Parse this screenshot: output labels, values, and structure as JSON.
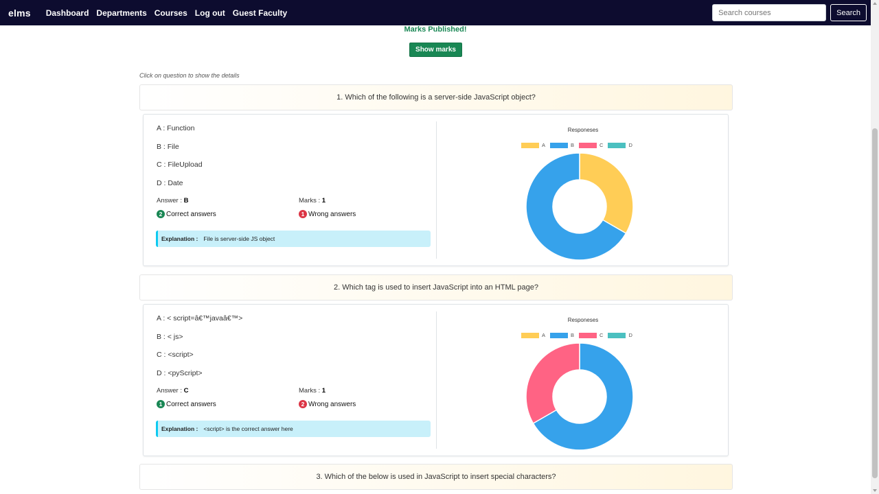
{
  "navbar": {
    "brand": "elms",
    "links": [
      "Dashboard",
      "Departments",
      "Courses",
      "Log out",
      "Guest Faculty"
    ],
    "search_placeholder": "Search courses",
    "search_button": "Search"
  },
  "status": {
    "published_text": "Marks Published!",
    "show_marks_label": "Show marks",
    "hint": "Click on question to show the details"
  },
  "labels": {
    "answer": "Answer : ",
    "marks": "Marks : ",
    "correct": "Correct answers",
    "wrong": "Wrong answers",
    "explanation": "Explanation :",
    "chart_title": "Responeses"
  },
  "colors": {
    "A": "#ffcd56",
    "B": "#36a2eb",
    "C": "#ff6384",
    "D": "#4bc0c0",
    "navbar": "#0d0c2f",
    "success": "#198754",
    "danger": "#dc3545"
  },
  "questions": [
    {
      "title": "1. Which of the following is a server-side JavaScript object?",
      "options": [
        "A : Function",
        "B : File",
        "C : FileUpload",
        "D : Date"
      ],
      "answer": "B",
      "marks": "1",
      "correct_count": "2",
      "wrong_count": "1",
      "explanation": "File is server-side JS object"
    },
    {
      "title": "2. Which tag is used to insert JavaScript into an HTML page?",
      "options": [
        "A : < script=â€™javaâ€™>",
        "B : < js>",
        "C : <script>",
        "D : <pyScript>"
      ],
      "answer": "C",
      "marks": "1",
      "correct_count": "1",
      "wrong_count": "2",
      "explanation": "<script> is the correct answer here"
    },
    {
      "title": "3. Which of the below is used in JavaScript to insert special characters?"
    }
  ],
  "chart_data": [
    {
      "type": "pie",
      "title": "Responeses",
      "categories": [
        "A",
        "B",
        "C",
        "D"
      ],
      "values": [
        1,
        2,
        0,
        0
      ],
      "legend": "top"
    },
    {
      "type": "pie",
      "title": "Responeses",
      "categories": [
        "A",
        "B",
        "C",
        "D"
      ],
      "values": [
        0,
        2,
        1,
        0
      ],
      "legend": "top"
    }
  ]
}
